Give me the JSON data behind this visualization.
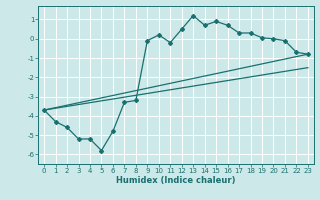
{
  "xlabel": "Humidex (Indice chaleur)",
  "bg_color": "#cce8e8",
  "grid_color": "#ffffff",
  "line_color": "#1a7070",
  "xlim": [
    -0.5,
    23.5
  ],
  "ylim": [
    -6.5,
    1.7
  ],
  "xticks": [
    0,
    1,
    2,
    3,
    4,
    5,
    6,
    7,
    8,
    9,
    10,
    11,
    12,
    13,
    14,
    15,
    16,
    17,
    18,
    19,
    20,
    21,
    22,
    23
  ],
  "yticks": [
    -6,
    -5,
    -4,
    -3,
    -2,
    -1,
    0,
    1
  ],
  "curve_x": [
    0,
    1,
    2,
    3,
    4,
    5,
    6,
    7,
    8,
    9,
    10,
    11,
    12,
    13,
    14,
    15,
    16,
    17,
    18,
    19,
    20,
    21,
    22,
    23
  ],
  "curve_y": [
    -3.7,
    -4.3,
    -4.6,
    -5.2,
    -5.2,
    -5.8,
    -4.8,
    -3.3,
    -3.2,
    -0.1,
    0.2,
    -0.2,
    0.5,
    1.2,
    0.7,
    0.9,
    0.7,
    0.3,
    0.3,
    0.05,
    0.0,
    -0.1,
    -0.7,
    -0.8
  ],
  "line1_x": [
    0,
    23
  ],
  "line1_y": [
    -3.7,
    -0.8
  ],
  "line2_x": [
    0,
    23
  ],
  "line2_y": [
    -3.7,
    -1.5
  ],
  "line_width": 0.9,
  "marker": "D",
  "marker_size": 2.0,
  "font_size_label": 6,
  "font_size_tick": 5
}
